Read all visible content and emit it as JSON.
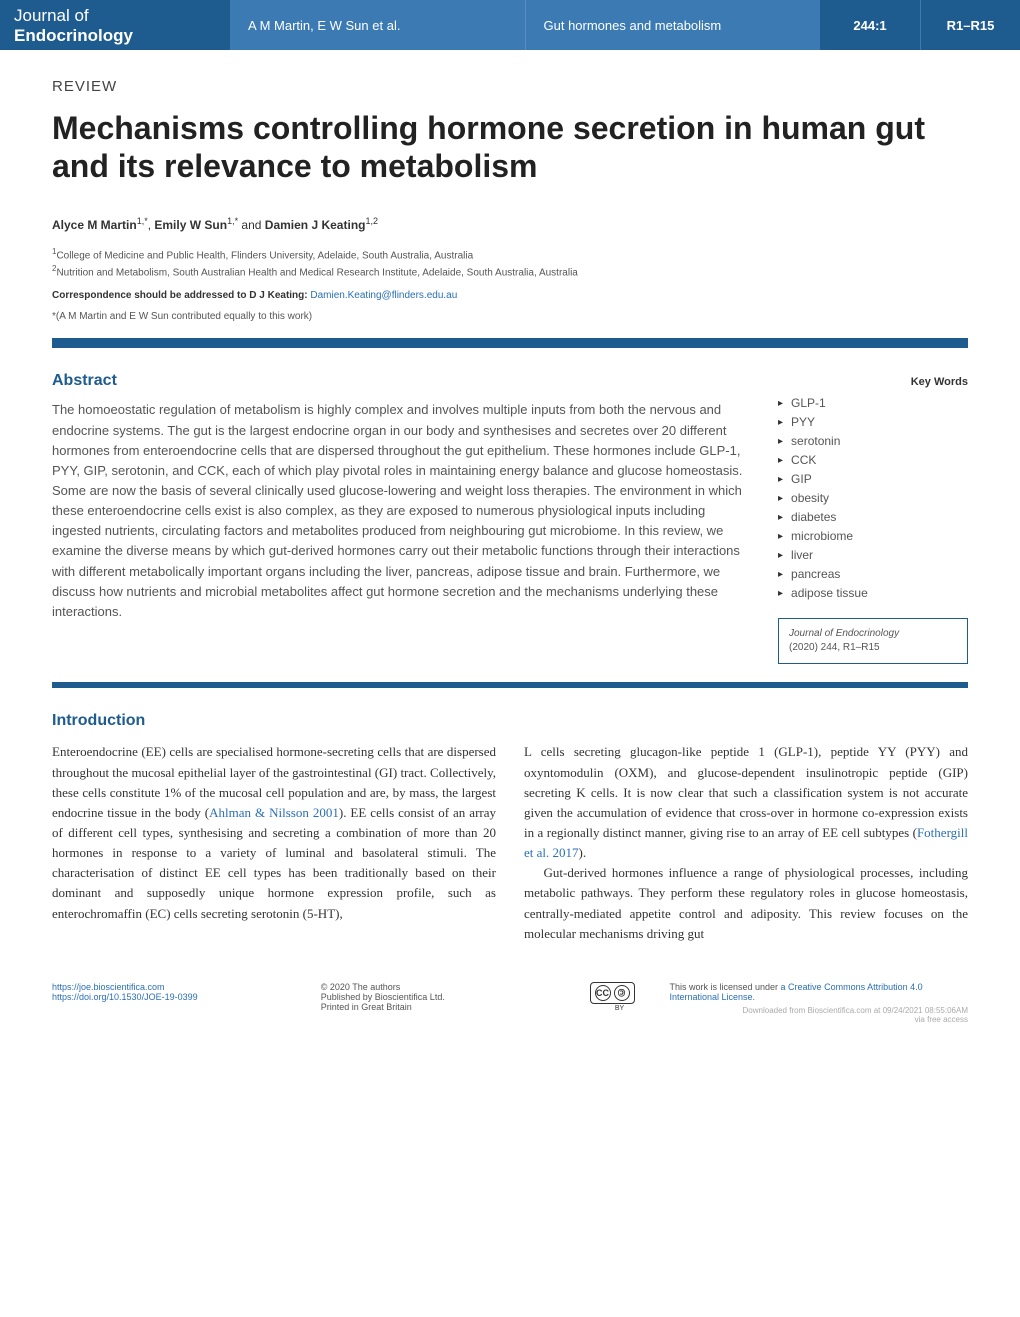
{
  "header": {
    "journal_line1": "Journal of",
    "journal_line2": "Endocrinology",
    "authors_short": "A M Martin, E W Sun et al.",
    "topic_short": "Gut hormones and metabolism",
    "issue": "244:1",
    "pages": "R1–R15",
    "colors": {
      "dark_blue": "#1e5b8e",
      "mid_blue": "#3b7ab3"
    }
  },
  "article": {
    "type": "REVIEW",
    "title": "Mechanisms controlling hormone secretion in human gut and its relevance to metabolism",
    "title_fontsize": 32
  },
  "authors": {
    "list_html": "Alyce M Martin¹,*, Emily W Sun¹,* and Damien J Keating¹,²",
    "a1_name": "Alyce M Martin",
    "a1_sup": "1,*",
    "a2_name": "Emily W Sun",
    "a2_sup": "1,*",
    "conj": " and ",
    "a3_name": "Damien J Keating",
    "a3_sup": "1,2"
  },
  "affiliations": {
    "aff1_sup": "1",
    "aff1": "College of Medicine and Public Health, Flinders University, Adelaide, South Australia, Australia",
    "aff2_sup": "2",
    "aff2": "Nutrition and Metabolism, South Australian Health and Medical Research Institute, Adelaide, South Australia, Australia"
  },
  "correspondence": {
    "label": "Correspondence should be addressed to D J Keating: ",
    "email": "Damien.Keating@flinders.edu.au"
  },
  "contrib_note": "*(A M Martin and E W Sun contributed equally to this work)",
  "abstract": {
    "heading": "Abstract",
    "text": "The homoeostatic regulation of metabolism is highly complex and involves multiple inputs from both the nervous and endocrine systems. The gut is the largest endocrine organ in our body and synthesises and secretes over 20 different hormones from enteroendocrine cells that are dispersed throughout the gut epithelium. These hormones include GLP-1, PYY, GIP, serotonin, and CCK, each of which play pivotal roles in maintaining energy balance and glucose homeostasis. Some are now the basis of several clinically used glucose-lowering and weight loss therapies. The environment in which these enteroendocrine cells exist is also complex, as they are exposed to numerous physiological inputs including ingested nutrients, circulating factors and metabolites produced from neighbouring gut microbiome. In this review, we examine the diverse means by which gut-derived hormones carry out their metabolic functions through their interactions with different metabolically important organs including the liver, pancreas, adipose tissue and brain. Furthermore, we discuss how nutrients and microbial metabolites affect gut hormone secretion and the mechanisms underlying these interactions."
  },
  "keywords": {
    "heading": "Key Words",
    "items": [
      "GLP-1",
      "PYY",
      "serotonin",
      "CCK",
      "GIP",
      "obesity",
      "diabetes",
      "microbiome",
      "liver",
      "pancreas",
      "adipose tissue"
    ]
  },
  "citation": {
    "journal": "Journal of Endocrinology",
    "year_vol": "(2020) 244",
    "pages": ", R1–R15"
  },
  "introduction": {
    "heading": "Introduction",
    "col1_p1a": "Enteroendocrine (EE) cells are specialised hormone-secreting cells that are dispersed throughout the mucosal epithelial layer of the gastrointestinal (GI) tract. Collectively, these cells constitute 1% of the mucosal cell population and are, by mass, the largest endocrine tissue in the body (",
    "col1_ref1": "Ahlman & Nilsson 2001",
    "col1_p1b": "). EE cells consist of an array of different cell types, synthesising and secreting a combination of more than 20 hormones in response to a variety of luminal and basolateral stimuli. The characterisation of distinct EE cell types has been traditionally based on their dominant and supposedly unique hormone expression profile, such as enterochromaffin (EC) cells secreting serotonin (5-HT),",
    "col2_p1a": "L cells secreting glucagon-like peptide 1 (GLP-1), peptide YY (PYY) and oxyntomodulin (OXM), and glucose-dependent insulinotropic peptide (GIP) secreting K cells. It is now clear that such a classification system is not accurate given the accumulation of evidence that cross-over in hormone co-expression exists in a regionally distinct manner, giving rise to an array of EE cell subtypes (",
    "col2_ref1": "Fothergill et al. 2017",
    "col2_p1b": ").",
    "col2_p2": "Gut-derived hormones influence a range of physiological processes, including metabolic pathways. They perform these regulatory roles in glucose homeostasis, centrally-mediated appetite control and adiposity. This review focuses on the molecular mechanisms driving gut"
  },
  "footer": {
    "url": "https://joe.bioscientifica.com",
    "doi": "https://doi.org/10.1530/JOE-19-0399",
    "copyright": "© 2020 The authors",
    "publisher": "Published by Bioscientifica Ltd.",
    "printed": "Printed in Great Britain",
    "license_text": "This work is licensed under ",
    "license_link": "a Creative Commons Attribution 4.0 International License.",
    "download": "Downloaded from Bioscientifica.com at 09/24/2021 08:55:06AM",
    "access": "via free access",
    "cc_label": "CC",
    "by_label": "BY"
  }
}
